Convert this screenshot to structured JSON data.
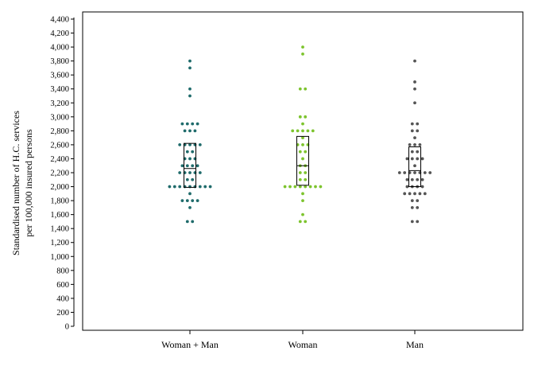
{
  "chart_data": {
    "type": "scatter",
    "subtype": "dot-plot-with-boxes",
    "title": "",
    "xlabel": "",
    "ylabel": [
      "Standardised number of H.C. services",
      "per 100,000 insured persons"
    ],
    "ylim": [
      0,
      4400
    ],
    "ytick_step": 200,
    "grid": false,
    "legend": "none",
    "categories": [
      "Woman + Man",
      "Woman",
      "Man"
    ],
    "series": [
      {
        "color": "#1f6b6b",
        "box": {
          "q1": 1990,
          "median": 2260,
          "q3": 2620
        },
        "points": [
          3800,
          3700,
          3400,
          3300,
          2900,
          2900,
          2900,
          2900,
          2800,
          2800,
          2800,
          2600,
          2600,
          2600,
          2600,
          2600,
          2500,
          2500,
          2400,
          2400,
          2400,
          2300,
          2300,
          2300,
          2300,
          2200,
          2200,
          2200,
          2200,
          2200,
          2100,
          2100,
          2000,
          2000,
          2000,
          2000,
          2000,
          2000,
          2000,
          2000,
          2000,
          1900,
          1800,
          1800,
          1800,
          1800,
          1700,
          1500,
          1500
        ]
      },
      {
        "color": "#7dc42e",
        "box": {
          "q1": 2020,
          "median": 2300,
          "q3": 2720
        },
        "points": [
          4000,
          3900,
          3400,
          3400,
          3000,
          3000,
          2900,
          2800,
          2800,
          2800,
          2800,
          2800,
          2700,
          2600,
          2600,
          2600,
          2500,
          2500,
          2400,
          2300,
          2300,
          2200,
          2200,
          2100,
          2100,
          2000,
          2000,
          2000,
          2000,
          2000,
          2000,
          2000,
          2000,
          1900,
          1800,
          1600,
          1500,
          1500
        ]
      },
      {
        "color": "#555555",
        "box": {
          "q1": 2000,
          "median": 2230,
          "q3": 2570
        },
        "points": [
          3800,
          3500,
          3400,
          3200,
          2900,
          2900,
          2800,
          2800,
          2700,
          2600,
          2600,
          2600,
          2500,
          2500,
          2400,
          2400,
          2400,
          2400,
          2300,
          2200,
          2200,
          2200,
          2200,
          2200,
          2200,
          2200,
          2100,
          2100,
          2100,
          2100,
          2000,
          2000,
          2000,
          2000,
          1900,
          1900,
          1900,
          1900,
          1900,
          1800,
          1800,
          1700,
          1700,
          1500,
          1500
        ]
      }
    ]
  }
}
